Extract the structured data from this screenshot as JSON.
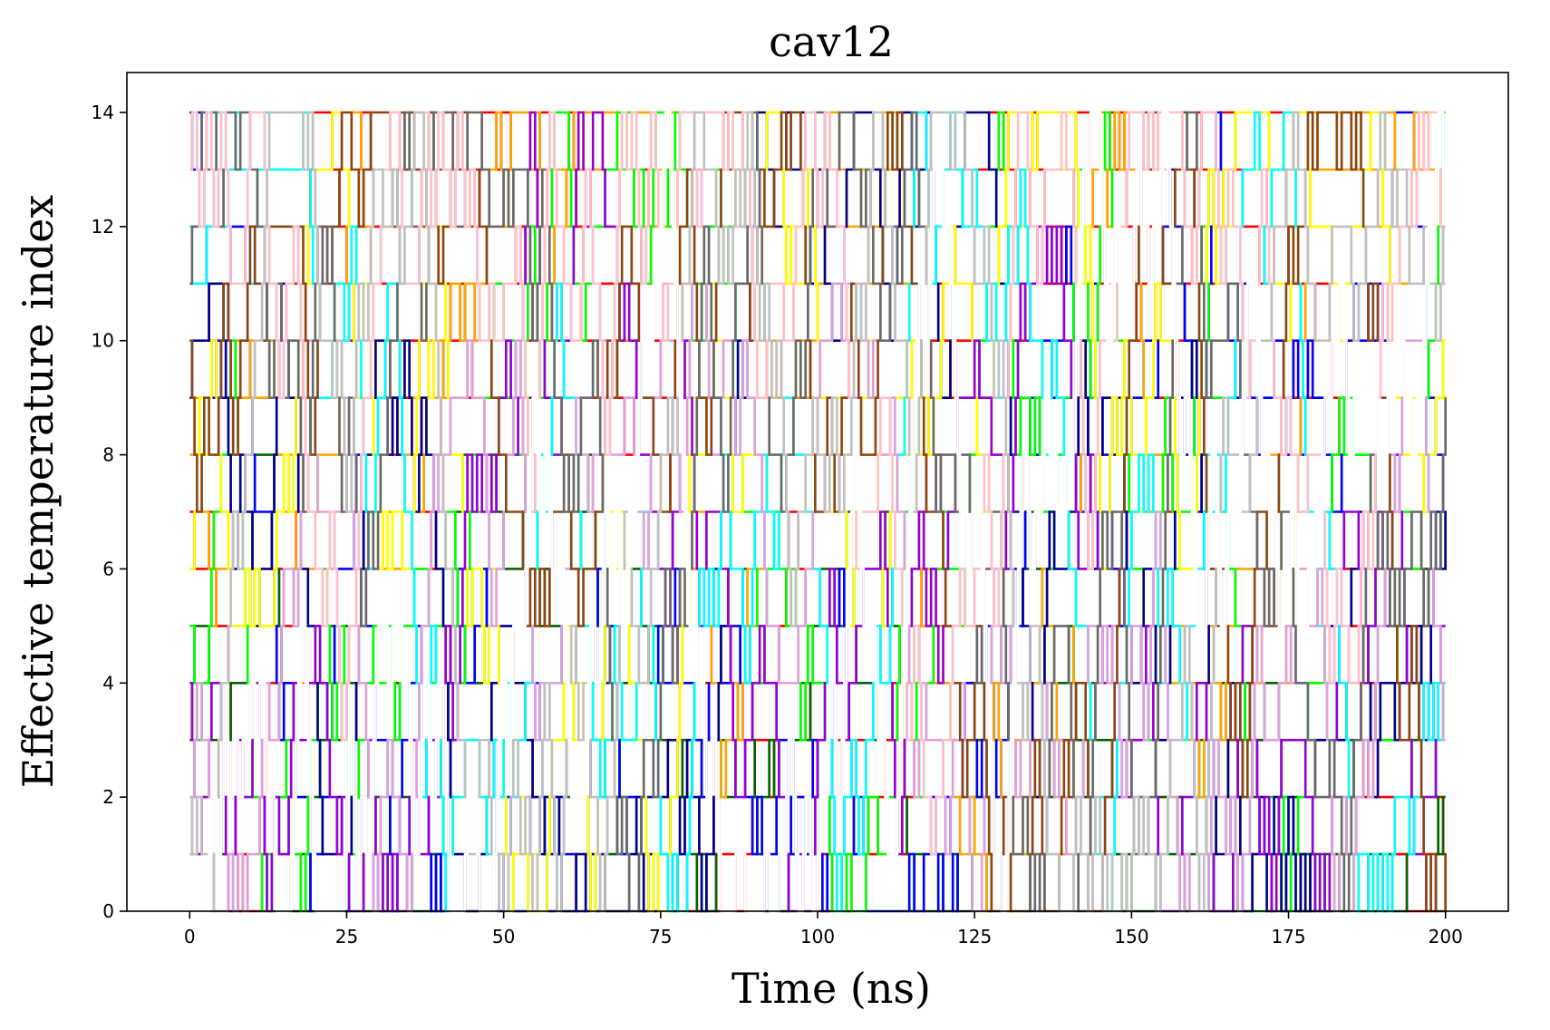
{
  "chart_data": {
    "type": "line",
    "title": "cav12",
    "xlabel": "Time (ns)",
    "ylabel": "Effective temperature index",
    "xlim": [
      -10,
      210
    ],
    "ylim": [
      0,
      14.7
    ],
    "xticks": [
      0,
      25,
      50,
      75,
      100,
      125,
      150,
      175,
      200
    ],
    "yticks": [
      0,
      2,
      4,
      6,
      8,
      10,
      12,
      14
    ],
    "x_range": [
      0,
      200
    ],
    "grid": false,
    "legend": "none",
    "num_series": 15,
    "num_exchange_steps": 520,
    "series_colors": [
      "#ff0000",
      "#006400",
      "#0000ff",
      "#ffa500",
      "#00ff00",
      "#00008b",
      "#ffff00",
      "#9400d3",
      "#00ffff",
      "#dda0dd",
      "#8b4513",
      "#696969",
      "#ffc0cb",
      "#c0c0c0",
      "#ffffff"
    ]
  }
}
